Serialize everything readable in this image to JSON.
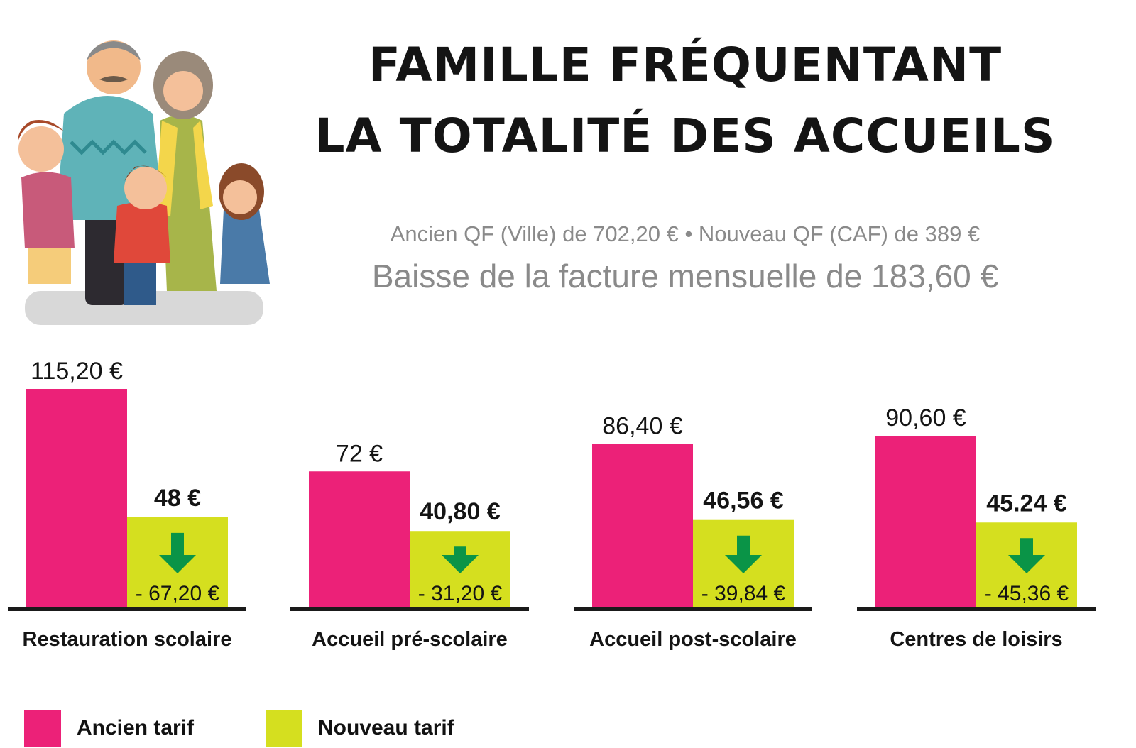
{
  "header": {
    "title_line1": "FAMILLE FRÉQUENTANT",
    "title_line2": "LA TOTALITÉ DES ACCUEILS",
    "subtitle": "Ancien QF (Ville) de 702,20 € • Nouveau QF (CAF) de 389 €",
    "highlight": "Baisse de la facture mensuelle de 183,60 €"
  },
  "colors": {
    "old": "#ec2178",
    "new": "#d5df1f",
    "arrow": "#0a9447",
    "baseline": "#1a1a1a"
  },
  "icons": {
    "illustration": "family-illustration",
    "decrease": "down-arrow-icon"
  },
  "chart_data": {
    "type": "bar",
    "categories": [
      "Restauration scolaire",
      "Accueil pré-scolaire",
      "Accueil post-scolaire",
      "Centres de loisirs"
    ],
    "series": [
      {
        "name": "Ancien tarif",
        "values": [
          115.2,
          72,
          86.4,
          90.6
        ],
        "labels": [
          "115,20 €",
          "72 €",
          "86,40 €",
          "90,60 €"
        ]
      },
      {
        "name": "Nouveau tarif",
        "values": [
          48,
          40.8,
          46.56,
          45.24
        ],
        "labels": [
          "48 €",
          "40,80 €",
          "46,56 €",
          "45.24 €"
        ]
      }
    ],
    "differences": [
      "- 67,20 €",
      "- 31,20 €",
      "- 39,84 €",
      "- 45,36 €"
    ],
    "legend": [
      "Ancien tarif",
      "Nouveau tarif"
    ],
    "legend_position": "bottom-left",
    "grid": false
  }
}
